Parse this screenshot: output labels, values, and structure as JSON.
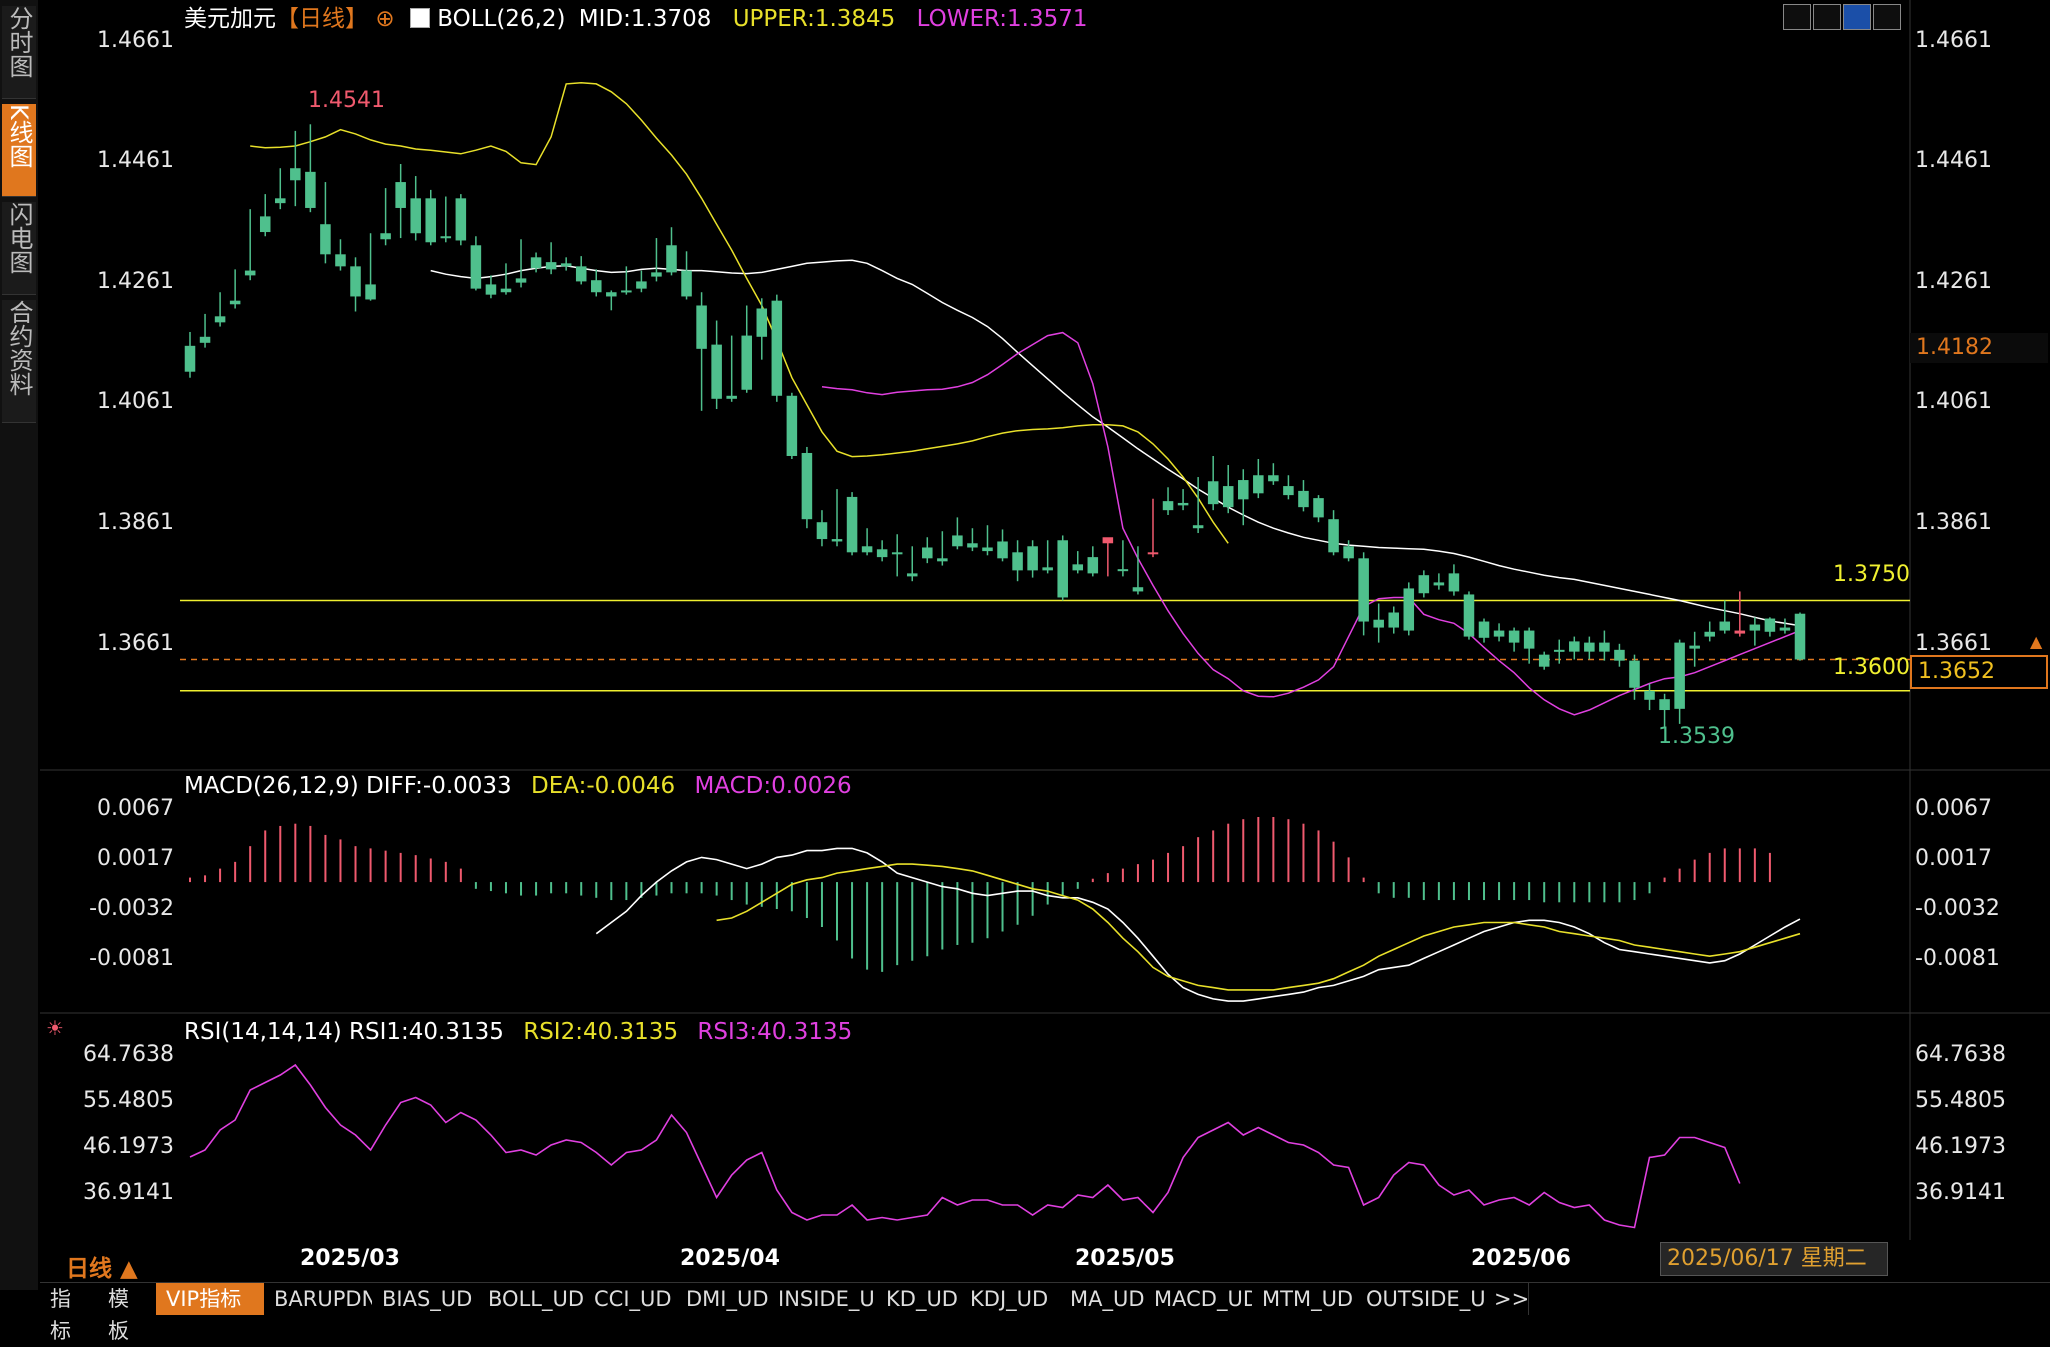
{
  "sidebar": [
    "分时图",
    "K线图",
    "闪电图",
    "合约资料"
  ],
  "header": {
    "symbol": "美元加元",
    "period": "【日线】",
    "indicator": "BOLL(26,2)",
    "mid": "MID:1.3708",
    "upper": "UPPER:1.3845",
    "lower": "LOWER:1.3571"
  },
  "main_axis_labels": [
    "1.4661",
    "1.4461",
    "1.4261",
    "1.4061",
    "1.3861",
    "1.3661"
  ],
  "markers": {
    "high_label": "1.4541",
    "low_label": "1.3539",
    "level_high": "1.3750",
    "level_low": "1.3600",
    "price_tag_current": "1.3652",
    "price_tag_other": "1.4182"
  },
  "macd": {
    "title": "MACD(26,12,9)",
    "diff": "DIFF:-0.0033",
    "dea": "DEA:-0.0046",
    "macd": "MACD:0.0026",
    "axis_labels": [
      "0.0067",
      "0.0017",
      "-0.0032",
      "-0.0081"
    ]
  },
  "rsi": {
    "title": "RSI(14,14,14)",
    "rsi1": "RSI1:40.3135",
    "rsi2": "RSI2:40.3135",
    "rsi3": "RSI3:40.3135",
    "axis_labels": [
      "64.7638",
      "55.4805",
      "46.1973",
      "36.9141"
    ]
  },
  "x_labels": [
    "2025/03",
    "2025/04",
    "2025/05",
    "2025/06"
  ],
  "period_selector": "日线 ▲",
  "cursor_date": "2025/06/17 星期二",
  "toolbar": [
    "指标",
    "模板",
    "VIP指标",
    "BARUPDN_UD",
    "BIAS_UD",
    "BOLL_UD",
    "CCI_UD",
    "DMI_UD",
    "INSIDE_UD",
    "KD_UD",
    "KDJ_UD",
    "MA_UD",
    "MACD_UD",
    "MTM_UD",
    "OUTSIDE_UD",
    ">>"
  ],
  "colors": {
    "up": "#f05a6e",
    "down": "#4fc08d",
    "mid": "#ffffff",
    "upper": "#e8e02a",
    "lower": "#e040e0",
    "level": "#f0f030",
    "accent": "#e0771e"
  },
  "chart_data": {
    "type": "candlestick",
    "y_range": [
      1.3485,
      1.4681
    ],
    "candles": [
      [
        1.4173,
        1.4196,
        1.413,
        1.412
      ],
      [
        1.4188,
        1.4226,
        1.4178,
        1.417
      ],
      [
        1.4222,
        1.4262,
        1.4212,
        1.4205
      ],
      [
        1.4248,
        1.43,
        1.4242,
        1.4235
      ],
      [
        1.4298,
        1.44,
        1.429,
        1.4282
      ],
      [
        1.4388,
        1.4425,
        1.4362,
        1.4355
      ],
      [
        1.4418,
        1.4468,
        1.441,
        1.44
      ],
      [
        1.4468,
        1.453,
        1.4448,
        1.4405
      ],
      [
        1.4462,
        1.4541,
        1.4402,
        1.4395
      ],
      [
        1.4375,
        1.4445,
        1.4325,
        1.431
      ],
      [
        1.4325,
        1.435,
        1.4305,
        1.4298
      ],
      [
        1.4305,
        1.432,
        1.4255,
        1.423
      ],
      [
        1.4275,
        1.436,
        1.425,
        1.4248
      ],
      [
        1.436,
        1.4435,
        1.435,
        1.434
      ],
      [
        1.4445,
        1.4475,
        1.4402,
        1.4352
      ],
      [
        1.4418,
        1.4455,
        1.436,
        1.4348
      ],
      [
        1.4418,
        1.4432,
        1.4345,
        1.434
      ],
      [
        1.4355,
        1.4421,
        1.4352,
        1.4345
      ],
      [
        1.4418,
        1.4425,
        1.4348,
        1.434
      ],
      [
        1.434,
        1.4355,
        1.4268,
        1.4265
      ],
      [
        1.4275,
        1.429,
        1.4258,
        1.4252
      ],
      [
        1.4268,
        1.431,
        1.4262,
        1.4258
      ],
      [
        1.4285,
        1.435,
        1.4278,
        1.427
      ],
      [
        1.432,
        1.4328,
        1.4302,
        1.4295
      ],
      [
        1.4312,
        1.4345,
        1.43,
        1.4292
      ],
      [
        1.431,
        1.432,
        1.4305,
        1.4298
      ],
      [
        1.4305,
        1.4322,
        1.428,
        1.4275
      ],
      [
        1.4282,
        1.43,
        1.4262,
        1.4255
      ],
      [
        1.4262,
        1.4265,
        1.4255,
        1.4232
      ],
      [
        1.4265,
        1.4305,
        1.4262,
        1.4258
      ],
      [
        1.428,
        1.4298,
        1.4268,
        1.4262
      ],
      [
        1.4295,
        1.4352,
        1.4288,
        1.428
      ],
      [
        1.434,
        1.437,
        1.4295,
        1.429
      ],
      [
        1.4298,
        1.433,
        1.4255,
        1.425
      ],
      [
        1.424,
        1.4262,
        1.4168,
        1.4065
      ],
      [
        1.4175,
        1.4215,
        1.4085,
        1.4068
      ],
      [
        1.409,
        1.419,
        1.4085,
        1.408
      ],
      [
        1.419,
        1.424,
        1.41,
        1.4095
      ],
      [
        1.4235,
        1.4252,
        1.4188,
        1.415
      ],
      [
        1.4248,
        1.4258,
        1.409,
        1.408
      ],
      [
        1.409,
        1.4095,
        1.399,
        1.3985
      ],
      [
        1.3995,
        1.4005,
        1.3885,
        1.387
      ],
      [
        1.388,
        1.39,
        1.3852,
        1.384
      ],
      [
        1.3852,
        1.3935,
        1.3848,
        1.384
      ],
      [
        1.3922,
        1.393,
        1.383,
        1.3825
      ],
      [
        1.384,
        1.387,
        1.383,
        1.3825
      ],
      [
        1.3835,
        1.385,
        1.3822,
        1.3815
      ],
      [
        1.383,
        1.386,
        1.3828,
        1.379
      ],
      [
        1.3795,
        1.384,
        1.379,
        1.3782
      ],
      [
        1.3838,
        1.3855,
        1.382,
        1.3812
      ],
      [
        1.382,
        1.3865,
        1.3815,
        1.3808
      ],
      [
        1.3858,
        1.3888,
        1.384,
        1.3835
      ],
      [
        1.3845,
        1.387,
        1.3838,
        1.3832
      ],
      [
        1.3838,
        1.3875,
        1.3832,
        1.3825
      ],
      [
        1.3848,
        1.3868,
        1.382,
        1.3815
      ],
      [
        1.383,
        1.385,
        1.38,
        1.3782
      ],
      [
        1.384,
        1.385,
        1.38,
        1.3788
      ],
      [
        1.3805,
        1.385,
        1.38,
        1.3795
      ],
      [
        1.385,
        1.3858,
        1.3755,
        1.375
      ],
      [
        1.381,
        1.3832,
        1.38,
        1.3795
      ],
      [
        1.3822,
        1.384,
        1.3795,
        1.379
      ],
      [
        1.3845,
        1.3849,
        1.3855,
        1.379
      ],
      [
        1.3802,
        1.385,
        1.38,
        1.379
      ],
      [
        1.3772,
        1.384,
        1.3765,
        1.376
      ],
      [
        1.3828,
        1.3919,
        1.383,
        1.3822
      ],
      [
        1.3915,
        1.3938,
        1.39,
        1.3892
      ],
      [
        1.3912,
        1.3935,
        1.3908,
        1.39
      ],
      [
        1.3875,
        1.3955,
        1.387,
        1.3862
      ],
      [
        1.3948,
        1.399,
        1.391,
        1.39
      ],
      [
        1.394,
        1.3975,
        1.3905,
        1.3895
      ],
      [
        1.395,
        1.3968,
        1.3918,
        1.3875
      ],
      [
        1.3958,
        1.3985,
        1.3928,
        1.392
      ],
      [
        1.3958,
        1.3978,
        1.3948,
        1.3942
      ],
      [
        1.394,
        1.3958,
        1.3925,
        1.3918
      ],
      [
        1.3932,
        1.395,
        1.3905,
        1.3898
      ],
      [
        1.392,
        1.3925,
        1.3888,
        1.388
      ],
      [
        1.3885,
        1.39,
        1.383,
        1.3825
      ],
      [
        1.384,
        1.385,
        1.382,
        1.3815
      ],
      [
        1.382,
        1.383,
        1.3715,
        1.3692
      ],
      [
        1.3718,
        1.3745,
        1.3705,
        1.368
      ],
      [
        1.373,
        1.374,
        1.3705,
        1.3695
      ],
      [
        1.377,
        1.378,
        1.37,
        1.3692
      ],
      [
        1.3792,
        1.38,
        1.3762,
        1.3755
      ],
      [
        1.378,
        1.3795,
        1.3775,
        1.3768
      ],
      [
        1.3795,
        1.381,
        1.3765,
        1.3758
      ],
      [
        1.376,
        1.3765,
        1.369,
        1.3685
      ],
      [
        1.3715,
        1.372,
        1.3688,
        1.368
      ],
      [
        1.37,
        1.3712,
        1.369,
        1.3682
      ],
      [
        1.37,
        1.3705,
        1.368,
        1.3665
      ],
      [
        1.37,
        1.3705,
        1.367,
        1.3645
      ],
      [
        1.366,
        1.3665,
        1.364,
        1.3635
      ],
      [
        1.3668,
        1.3685,
        1.3665,
        1.3645
      ],
      [
        1.3682,
        1.369,
        1.3665,
        1.3652
      ],
      [
        1.368,
        1.369,
        1.3665,
        1.3652
      ],
      [
        1.368,
        1.37,
        1.3665,
        1.365
      ],
      [
        1.3668,
        1.3678,
        1.365,
        1.364
      ],
      [
        1.365,
        1.366,
        1.3605,
        1.3585
      ],
      [
        1.36,
        1.3612,
        1.3585,
        1.3568
      ],
      [
        1.3586,
        1.3595,
        1.3568,
        1.3539
      ],
      [
        1.368,
        1.3685,
        1.357,
        1.3545
      ],
      [
        1.3675,
        1.3698,
        1.367,
        1.364
      ],
      [
        1.3698,
        1.3715,
        1.369,
        1.3682
      ],
      [
        1.3715,
        1.375,
        1.37,
        1.3695
      ],
      [
        1.3695,
        1.3765,
        1.37,
        1.369
      ],
      [
        1.371,
        1.3722,
        1.37,
        1.3675
      ],
      [
        1.372,
        1.3722,
        1.3698,
        1.369
      ],
      [
        1.3705,
        1.372,
        1.37,
        1.3695
      ],
      [
        1.3728,
        1.373,
        1.3652,
        1.365
      ]
    ],
    "boll_mid": [
      1.4298,
      1.4292,
      1.4288,
      1.4285,
      1.4288,
      1.4292,
      1.4298,
      1.4302,
      1.4305,
      1.4306,
      1.4302,
      1.4298,
      1.4295,
      1.4296,
      1.43,
      1.4302,
      1.43,
      1.4298,
      1.4298,
      1.4296,
      1.4294,
      1.4293,
      1.4295,
      1.43,
      1.4305,
      1.431,
      1.4312,
      1.4314,
      1.4315,
      1.431,
      1.4298,
      1.4285,
      1.4275,
      1.426,
      1.4245,
      1.4232,
      1.422,
      1.4205,
      1.4185,
      1.4162,
      1.414,
      1.4118,
      1.4096,
      1.4075,
      1.4055,
      1.4038,
      1.402,
      1.4002,
      1.3985,
      1.3968,
      1.3952,
      1.3935,
      1.392,
      1.3905,
      1.3892,
      1.388,
      1.387,
      1.3862,
      1.3855,
      1.385,
      1.3845,
      1.3842,
      1.384,
      1.3838,
      1.3837,
      1.3836,
      1.3835,
      1.3832,
      1.3828,
      1.3822,
      1.3815,
      1.3808,
      1.3802,
      1.3797,
      1.3792,
      1.3788,
      1.3785,
      1.378,
      1.3775,
      1.377,
      1.3765,
      1.376,
      1.3755,
      1.375,
      1.3744,
      1.3738,
      1.3733,
      1.3728,
      1.3722,
      1.3716,
      1.3712,
      1.3708
    ],
    "boll_upper": [
      1.4505,
      1.4502,
      1.4503,
      1.4505,
      1.4512,
      1.452,
      1.4532,
      1.4525,
      1.4515,
      1.4508,
      1.4505,
      1.45,
      1.4498,
      1.4495,
      1.4492,
      1.4498,
      1.4505,
      1.4496,
      1.4477,
      1.4474,
      1.452,
      1.4608,
      1.461,
      1.4608,
      1.4595,
      1.4575,
      1.4548,
      1.4518,
      1.449,
      1.4458,
      1.4418,
      1.4375,
      1.4332,
      1.4285,
      1.424,
      1.4182,
      1.412,
      1.4075,
      1.403,
      1.3998,
      1.3989,
      1.399,
      1.3992,
      1.3995,
      1.3998,
      1.4002,
      1.4006,
      1.401,
      1.4015,
      1.4022,
      1.4028,
      1.4032,
      1.4034,
      1.4035,
      1.4037,
      1.404,
      1.4042,
      1.4042,
      1.404,
      1.403,
      1.401,
      1.3985,
      1.3955,
      1.392,
      1.388,
      1.3845
    ],
    "boll_lower": [
      1.4105,
      1.4102,
      1.41,
      1.4095,
      1.4092,
      1.4096,
      1.4098,
      1.41,
      1.4101,
      1.4105,
      1.4112,
      1.4125,
      1.4142,
      1.416,
      1.4175,
      1.419,
      1.4195,
      1.4178,
      1.411,
      1.4005,
      1.387,
      1.382,
      1.3775,
      1.3733,
      1.3695,
      1.3662,
      1.3635,
      1.362,
      1.36,
      1.3591,
      1.359,
      1.3596,
      1.3606,
      1.3618,
      1.364,
      1.369,
      1.374,
      1.3753,
      1.3755,
      1.3755,
      1.3727,
      1.3718,
      1.3712,
      1.3695,
      1.3672,
      1.365,
      1.363,
      1.3605,
      1.3585,
      1.357,
      1.356,
      1.3568,
      1.358,
      1.3592,
      1.3602,
      1.3612,
      1.362,
      1.3623,
      1.363,
      1.364,
      1.365,
      1.366,
      1.367,
      1.368,
      1.369,
      1.37
    ],
    "levels": [
      1.375,
      1.36
    ],
    "macd_range": [
      -0.0105,
      0.0082
    ],
    "macd_hist": [
      0.0004,
      0.0006,
      0.0012,
      0.0018,
      0.0032,
      0.0046,
      0.005,
      0.0052,
      0.005,
      0.0042,
      0.0038,
      0.0032,
      0.003,
      0.0028,
      0.0026,
      0.0024,
      0.0021,
      0.0018,
      0.0012,
      -0.0006,
      -0.0008,
      -0.001,
      -0.0012,
      -0.0012,
      -0.001,
      -0.001,
      -0.0012,
      -0.0014,
      -0.0016,
      -0.0016,
      -0.0014,
      -0.0012,
      -0.001,
      -0.001,
      -0.001,
      -0.0012,
      -0.0016,
      -0.002,
      -0.0022,
      -0.0024,
      -0.0026,
      -0.0032,
      -0.004,
      -0.0052,
      -0.0068,
      -0.0078,
      -0.008,
      -0.0074,
      -0.007,
      -0.0066,
      -0.006,
      -0.0056,
      -0.0054,
      -0.005,
      -0.0044,
      -0.0038,
      -0.003,
      -0.002,
      -0.0012,
      -0.0006,
      0.0003,
      0.0008,
      0.0012,
      0.0016,
      0.002,
      0.0026,
      0.0032,
      0.004,
      0.0046,
      0.0052,
      0.0056,
      0.0058,
      0.0058,
      0.0056,
      0.0052,
      0.0046,
      0.0036,
      0.0022,
      0.0004,
      -0.001,
      -0.0014,
      -0.0014,
      -0.0016,
      -0.0016,
      -0.0016,
      -0.0016,
      -0.0016,
      -0.0016,
      -0.0016,
      -0.0016,
      -0.0018,
      -0.0018,
      -0.0018,
      -0.0018,
      -0.0018,
      -0.0018,
      -0.0016,
      -0.001,
      0.0004,
      0.0012,
      0.002,
      0.0026,
      0.003,
      0.003,
      0.003,
      0.0026
    ],
    "macd_diff": [
      -0.0046,
      -0.0036,
      -0.0026,
      -0.0012,
      0.0,
      0.001,
      0.0018,
      0.0022,
      0.002,
      0.0016,
      0.0012,
      0.0016,
      0.0022,
      0.0024,
      0.0028,
      0.0028,
      0.003,
      0.003,
      0.0026,
      0.0018,
      0.0008,
      0.0004,
      0.0,
      -0.0004,
      -0.0006,
      -0.001,
      -0.0012,
      -0.001,
      -0.0008,
      -0.0008,
      -0.0012,
      -0.0014,
      -0.0014,
      -0.0018,
      -0.0024,
      -0.0036,
      -0.005,
      -0.0066,
      -0.0082,
      -0.0094,
      -0.01,
      -0.0104,
      -0.0106,
      -0.0106,
      -0.0104,
      -0.0102,
      -0.01,
      -0.0098,
      -0.0094,
      -0.0092,
      -0.0088,
      -0.0084,
      -0.0078,
      -0.0076,
      -0.0074,
      -0.0068,
      -0.0062,
      -0.0056,
      -0.005,
      -0.0044,
      -0.004,
      -0.0036,
      -0.0034,
      -0.0034,
      -0.0036,
      -0.004,
      -0.0046,
      -0.0054,
      -0.006,
      -0.0062,
      -0.0064,
      -0.0066,
      -0.0068,
      -0.007,
      -0.0072,
      -0.007,
      -0.0064,
      -0.0056,
      -0.0048,
      -0.004,
      -0.0033
    ],
    "macd_dea": [
      -0.0034,
      -0.0032,
      -0.0026,
      -0.0018,
      -0.001,
      -0.0002,
      0.0002,
      0.0004,
      0.0008,
      0.001,
      0.0012,
      0.0014,
      0.0016,
      0.0016,
      0.0015,
      0.0014,
      0.0012,
      0.001,
      0.0006,
      0.0002,
      -0.0002,
      -0.0006,
      -0.0008,
      -0.0012,
      -0.0016,
      -0.0024,
      -0.0036,
      -0.005,
      -0.0062,
      -0.0076,
      -0.0084,
      -0.0088,
      -0.0092,
      -0.0094,
      -0.0096,
      -0.0096,
      -0.0096,
      -0.0096,
      -0.0094,
      -0.0092,
      -0.009,
      -0.0086,
      -0.008,
      -0.0074,
      -0.0066,
      -0.006,
      -0.0054,
      -0.0048,
      -0.0044,
      -0.004,
      -0.0038,
      -0.0036,
      -0.0036,
      -0.0036,
      -0.0038,
      -0.004,
      -0.0044,
      -0.0046,
      -0.0048,
      -0.005,
      -0.0052,
      -0.0056,
      -0.0058,
      -0.006,
      -0.0062,
      -0.0064,
      -0.0066,
      -0.0064,
      -0.0062,
      -0.0058,
      -0.0054,
      -0.005,
      -0.0046
    ],
    "rsi_range": [
      30.0,
      70.0
    ],
    "rsi": [
      45.6,
      47.0,
      51.0,
      53.0,
      59.0,
      60.5,
      62.0,
      64.0,
      60.0,
      55.5,
      52.0,
      50.0,
      47.0,
      52.0,
      56.5,
      57.5,
      56.0,
      52.5,
      54.5,
      53.0,
      50.0,
      46.5,
      47.0,
      46.0,
      48.0,
      49.0,
      48.5,
      46.5,
      44.0,
      46.5,
      47.0,
      49.0,
      54.0,
      50.5,
      44.0,
      37.5,
      42.0,
      45.0,
      46.5,
      39.0,
      34.5,
      33.0,
      34.0,
      34.0,
      36.0,
      33.0,
      33.5,
      33.0,
      33.5,
      34.0,
      37.5,
      36.0,
      37.0,
      37.0,
      36.0,
      36.0,
      34.0,
      36.0,
      35.5,
      38.0,
      37.5,
      40.0,
      37.0,
      37.5,
      34.5,
      38.5,
      45.5,
      49.5,
      51.0,
      52.5,
      50.0,
      51.5,
      50.0,
      48.5,
      48.0,
      46.5,
      44.0,
      43.5,
      36.0,
      37.5,
      42.0,
      44.5,
      44.0,
      40.0,
      38.0,
      39.0,
      36.0,
      37.0,
      37.5,
      36.0,
      38.5,
      36.5,
      35.5,
      36.0,
      33.0,
      32.0,
      31.5,
      45.5,
      46.0,
      49.5,
      49.5,
      48.5,
      47.5,
      40.3
    ]
  }
}
